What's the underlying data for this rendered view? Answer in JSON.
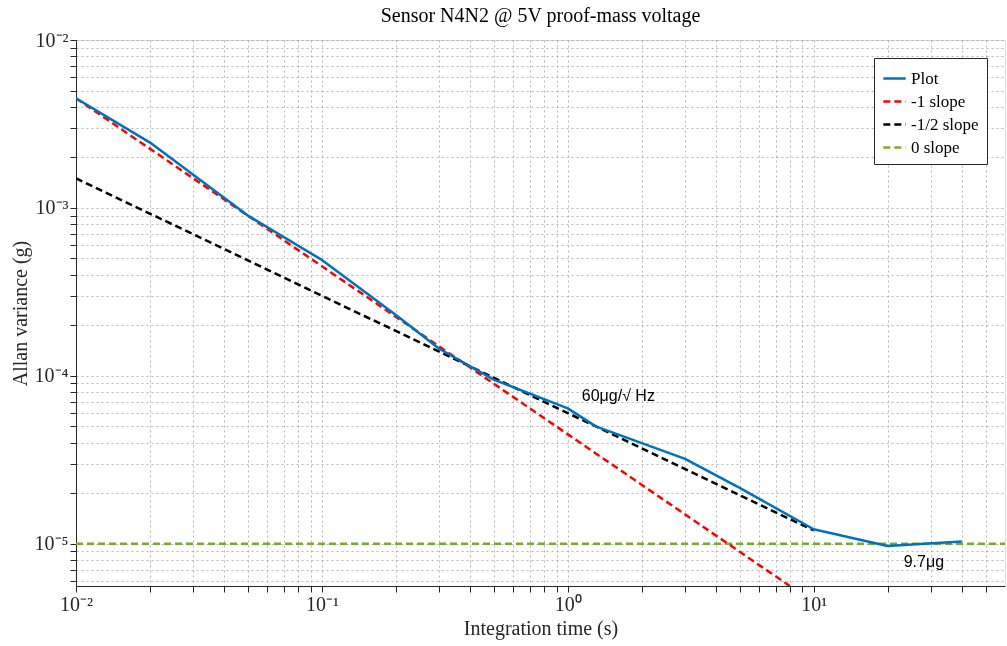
{
  "chart_data": {
    "type": "line",
    "title": "Sensor N4N2 @ 5V proof-mass voltage",
    "xlabel": "Integration time (s)",
    "ylabel": "Allan variance (g)",
    "log": "xy",
    "grid": true,
    "legend": "top right",
    "xlim": [
      0.01,
      60
    ],
    "ylim": [
      5.6e-06,
      0.01
    ],
    "xticks": [
      {
        "value": 0.01,
        "label": "10⁻²"
      },
      {
        "value": 0.02,
        "label": null
      },
      {
        "value": 0.03,
        "label": null
      },
      {
        "value": 0.04,
        "label": null
      },
      {
        "value": 0.05,
        "label": null
      },
      {
        "value": 0.06,
        "label": null
      },
      {
        "value": 0.07,
        "label": null
      },
      {
        "value": 0.08,
        "label": null
      },
      {
        "value": 0.09,
        "label": null
      },
      {
        "value": 0.1,
        "label": "10⁻¹"
      },
      {
        "value": 0.2,
        "label": null
      },
      {
        "value": 0.3,
        "label": null
      },
      {
        "value": 0.4,
        "label": null
      },
      {
        "value": 0.5,
        "label": null
      },
      {
        "value": 0.6,
        "label": null
      },
      {
        "value": 0.7,
        "label": null
      },
      {
        "value": 0.8,
        "label": null
      },
      {
        "value": 0.9,
        "label": null
      },
      {
        "value": 1,
        "label": "10⁰"
      },
      {
        "value": 2,
        "label": null
      },
      {
        "value": 3,
        "label": null
      },
      {
        "value": 4,
        "label": null
      },
      {
        "value": 5,
        "label": null
      },
      {
        "value": 6,
        "label": null
      },
      {
        "value": 7,
        "label": null
      },
      {
        "value": 8,
        "label": null
      },
      {
        "value": 9,
        "label": null
      },
      {
        "value": 10,
        "label": "10¹"
      },
      {
        "value": 20,
        "label": null
      },
      {
        "value": 30,
        "label": null
      },
      {
        "value": 40,
        "label": null
      },
      {
        "value": 50,
        "label": null
      }
    ],
    "yticks": [
      {
        "value": 6e-06,
        "label": null
      },
      {
        "value": 7e-06,
        "label": null
      },
      {
        "value": 8e-06,
        "label": null
      },
      {
        "value": 9e-06,
        "label": null
      },
      {
        "value": 1e-05,
        "label": "10⁻⁵"
      },
      {
        "value": 2e-05,
        "label": null
      },
      {
        "value": 3e-05,
        "label": null
      },
      {
        "value": 4e-05,
        "label": null
      },
      {
        "value": 5e-05,
        "label": null
      },
      {
        "value": 6e-05,
        "label": null
      },
      {
        "value": 7e-05,
        "label": null
      },
      {
        "value": 8e-05,
        "label": null
      },
      {
        "value": 9e-05,
        "label": null
      },
      {
        "value": 0.0001,
        "label": "10⁻⁴"
      },
      {
        "value": 0.0002,
        "label": null
      },
      {
        "value": 0.0003,
        "label": null
      },
      {
        "value": 0.0004,
        "label": null
      },
      {
        "value": 0.0005,
        "label": null
      },
      {
        "value": 0.0006,
        "label": null
      },
      {
        "value": 0.0007,
        "label": null
      },
      {
        "value": 0.0008,
        "label": null
      },
      {
        "value": 0.0009,
        "label": null
      },
      {
        "value": 0.001,
        "label": "10⁻³"
      },
      {
        "value": 0.002,
        "label": null
      },
      {
        "value": 0.003,
        "label": null
      },
      {
        "value": 0.004,
        "label": null
      },
      {
        "value": 0.005,
        "label": null
      },
      {
        "value": 0.006,
        "label": null
      },
      {
        "value": 0.007,
        "label": null
      },
      {
        "value": 0.008,
        "label": null
      },
      {
        "value": 0.009,
        "label": null
      },
      {
        "value": 0.01,
        "label": "10⁻²"
      }
    ],
    "series": [
      {
        "name": "Plot",
        "color": "#0072bd",
        "line_style": "solid",
        "x": [
          0.01,
          0.02,
          0.05,
          0.1,
          0.2,
          0.3,
          0.5,
          1,
          1.3,
          3,
          5,
          10,
          20,
          40
        ],
        "values": [
          0.0045,
          0.00245,
          0.0009,
          0.00049,
          0.00023,
          0.000145,
          9.5e-05,
          6.4e-05,
          5e-05,
          3.2e-05,
          2.15e-05,
          1.22e-05,
          9.7e-06,
          1.03e-05
        ]
      },
      {
        "name": "-1 slope",
        "color": "#ff0000",
        "line_style": "dashed",
        "x": [
          0.01,
          8
        ],
        "values": [
          0.0045,
          5.6e-06
        ]
      },
      {
        "name": "-1/2 slope",
        "color": "#000000",
        "line_style": "dashed",
        "x": [
          0.01,
          10
        ],
        "values": [
          0.0015,
          1.2e-05
        ]
      },
      {
        "name": "0 slope",
        "color": "#77ac30",
        "line_style": "dashed",
        "x": [
          0.01,
          60
        ],
        "values": [
          1e-05,
          1e-05
        ]
      }
    ],
    "annotations": [
      {
        "text": "60μg/√ Hz",
        "x": 1,
        "y": 6.4e-05
      },
      {
        "text": "9.7μg",
        "x": 20,
        "y": 9.7e-06
      }
    ]
  }
}
